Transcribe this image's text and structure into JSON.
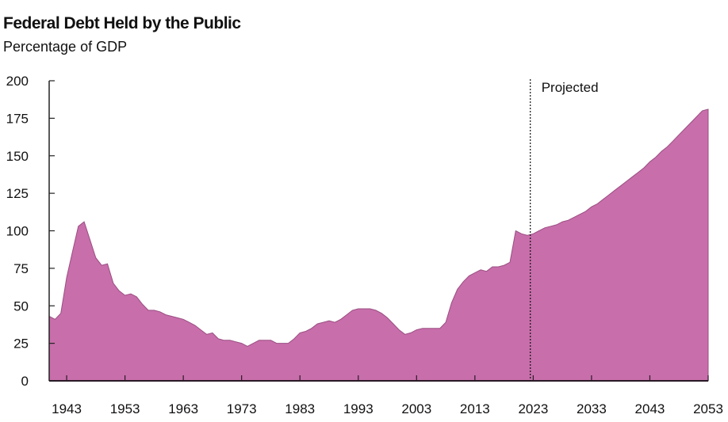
{
  "chart_data": {
    "type": "area",
    "title": "Federal Debt Held by the Public",
    "subtitle": "Percentage of GDP",
    "xlabel": "",
    "ylabel": "",
    "xlim": [
      1940,
      2053
    ],
    "ylim": [
      0,
      200
    ],
    "yticks": [
      0,
      25,
      50,
      75,
      100,
      125,
      150,
      175,
      200
    ],
    "xticks": [
      1943,
      1953,
      1963,
      1973,
      1983,
      1993,
      2003,
      2013,
      2023,
      2033,
      2043,
      2053
    ],
    "grid": false,
    "fill_color": "#c86eab",
    "line_color": "#9a4f82",
    "annotation": {
      "label": "Projected",
      "x": 2022.5
    },
    "x": [
      1940,
      1941,
      1942,
      1943,
      1944,
      1945,
      1946,
      1947,
      1948,
      1949,
      1950,
      1951,
      1952,
      1953,
      1954,
      1955,
      1956,
      1957,
      1958,
      1959,
      1960,
      1961,
      1962,
      1963,
      1964,
      1965,
      1966,
      1967,
      1968,
      1969,
      1970,
      1971,
      1972,
      1973,
      1974,
      1975,
      1976,
      1977,
      1978,
      1979,
      1980,
      1981,
      1982,
      1983,
      1984,
      1985,
      1986,
      1987,
      1988,
      1989,
      1990,
      1991,
      1992,
      1993,
      1994,
      1995,
      1996,
      1997,
      1998,
      1999,
      2000,
      2001,
      2002,
      2003,
      2004,
      2005,
      2006,
      2007,
      2008,
      2009,
      2010,
      2011,
      2012,
      2013,
      2014,
      2015,
      2016,
      2017,
      2018,
      2019,
      2020,
      2021,
      2022,
      2023,
      2024,
      2025,
      2026,
      2027,
      2028,
      2029,
      2030,
      2031,
      2032,
      2033,
      2034,
      2035,
      2036,
      2037,
      2038,
      2039,
      2040,
      2041,
      2042,
      2043,
      2044,
      2045,
      2046,
      2047,
      2048,
      2049,
      2050,
      2051,
      2052,
      2053
    ],
    "values": [
      43,
      41,
      45,
      69,
      86,
      103,
      106,
      94,
      82,
      77,
      78,
      65,
      60,
      57,
      58,
      56,
      51,
      47,
      47,
      46,
      44,
      43,
      42,
      41,
      39,
      37,
      34,
      31,
      32,
      28,
      27,
      27,
      26,
      25,
      23,
      25,
      27,
      27,
      27,
      25,
      25,
      25,
      28,
      32,
      33,
      35,
      38,
      39,
      40,
      39,
      41,
      44,
      47,
      48,
      48,
      48,
      47,
      45,
      42,
      38,
      34,
      31,
      32,
      34,
      35,
      35,
      35,
      35,
      39,
      52,
      61,
      66,
      70,
      72,
      74,
      73,
      76,
      76,
      77,
      79,
      100,
      98,
      97,
      98,
      100,
      102,
      103,
      104,
      106,
      107,
      109,
      111,
      113,
      116,
      118,
      121,
      124,
      127,
      130,
      133,
      136,
      139,
      142,
      146,
      149,
      153,
      156,
      160,
      164,
      168,
      172,
      176,
      180,
      181
    ]
  }
}
